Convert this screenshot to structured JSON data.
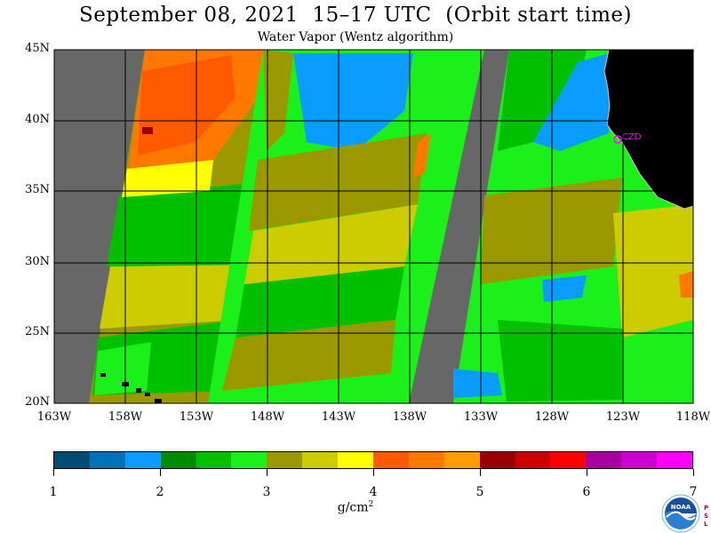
{
  "title": "September 08, 2021  15–17 UTC  (Orbit start time)",
  "subtitle": "Water Vapor (Wentz algorithm)",
  "lat_labels": [
    "45N",
    "40N",
    "35N",
    "30N",
    "25N",
    "20N"
  ],
  "lon_labels": [
    "163W",
    "158W",
    "153W",
    "148W",
    "143W",
    "138W",
    "133W",
    "128W",
    "123W",
    "118W"
  ],
  "station_label": "CZD",
  "colorbar": {
    "colors": [
      "#004c73",
      "#0073b8",
      "#0a9cff",
      "#008c00",
      "#00c000",
      "#1bf01b",
      "#9a9a00",
      "#cccc00",
      "#ffff00",
      "#ff5a00",
      "#ff7800",
      "#ff9c00",
      "#990000",
      "#cc0000",
      "#ff0000",
      "#a8009c",
      "#d000d0",
      "#ff00ff"
    ],
    "ticks": [
      "1",
      "2",
      "3",
      "4",
      "5",
      "6",
      "7"
    ],
    "units": "g/cm",
    "units_exp": "2"
  },
  "colors": {
    "land": "#000000",
    "missing": "#676767",
    "grid": "#000000",
    "coast_outline": "#c4c4c4",
    "station": "#ff00ff"
  },
  "logo": {
    "text": "NOAA",
    "side_text": [
      "P",
      "S",
      "L"
    ]
  }
}
